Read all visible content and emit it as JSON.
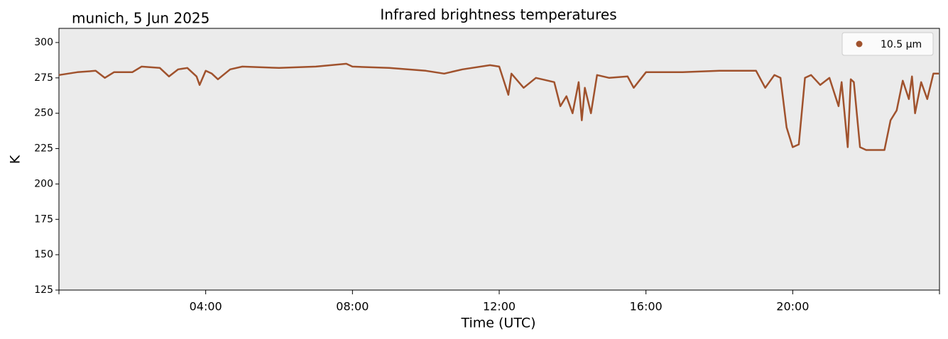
{
  "chart_data": {
    "type": "line",
    "title": "Infrared brightness temperatures",
    "annotation": "munich, 5 Jun 2025",
    "xlabel": "Time (UTC)",
    "ylabel": "K",
    "x": [
      "00:00",
      "00:30",
      "01:00",
      "01:15",
      "01:30",
      "02:00",
      "02:15",
      "02:45",
      "03:00",
      "03:15",
      "03:30",
      "03:45",
      "03:50",
      "04:00",
      "04:10",
      "04:20",
      "04:40",
      "05:00",
      "06:00",
      "07:00",
      "07:50",
      "08:00",
      "09:00",
      "09:30",
      "10:00",
      "10:30",
      "11:00",
      "11:45",
      "12:00",
      "12:15",
      "12:20",
      "12:40",
      "13:00",
      "13:30",
      "13:40",
      "13:50",
      "14:00",
      "14:10",
      "14:15",
      "14:20",
      "14:30",
      "14:40",
      "15:00",
      "15:30",
      "15:40",
      "16:00",
      "17:00",
      "18:00",
      "19:00",
      "19:15",
      "19:30",
      "19:40",
      "19:50",
      "20:00",
      "20:10",
      "20:20",
      "20:30",
      "20:45",
      "21:00",
      "21:15",
      "21:20",
      "21:30",
      "21:35",
      "21:40",
      "21:50",
      "22:00",
      "22:30",
      "22:40",
      "22:50",
      "23:00",
      "23:10",
      "23:15",
      "23:20",
      "23:30",
      "23:40",
      "23:50",
      "23:59"
    ],
    "series": [
      {
        "name": "10.5 µm",
        "color": "#a0522d",
        "values": [
          277,
          279,
          280,
          275,
          279,
          279,
          283,
          282,
          276,
          281,
          282,
          276,
          270,
          280,
          278,
          274,
          281,
          283,
          282,
          283,
          285,
          283,
          282,
          281,
          280,
          278,
          281,
          284,
          283,
          263,
          278,
          268,
          275,
          272,
          255,
          262,
          250,
          272,
          245,
          268,
          250,
          277,
          275,
          276,
          268,
          279,
          279,
          280,
          280,
          268,
          277,
          275,
          240,
          226,
          228,
          275,
          277,
          270,
          275,
          255,
          272,
          226,
          274,
          272,
          226,
          224,
          224,
          245,
          252,
          273,
          260,
          276,
          250,
          272,
          260,
          278,
          278
        ]
      }
    ],
    "xlim": [
      "00:00",
      "24:00"
    ],
    "xticks": [
      "04:00",
      "08:00",
      "12:00",
      "16:00",
      "20:00"
    ],
    "ylim": [
      125,
      310
    ],
    "yticks": [
      125,
      150,
      175,
      200,
      225,
      250,
      275,
      300
    ],
    "legend": "upper right",
    "background": "#ebebeb"
  }
}
